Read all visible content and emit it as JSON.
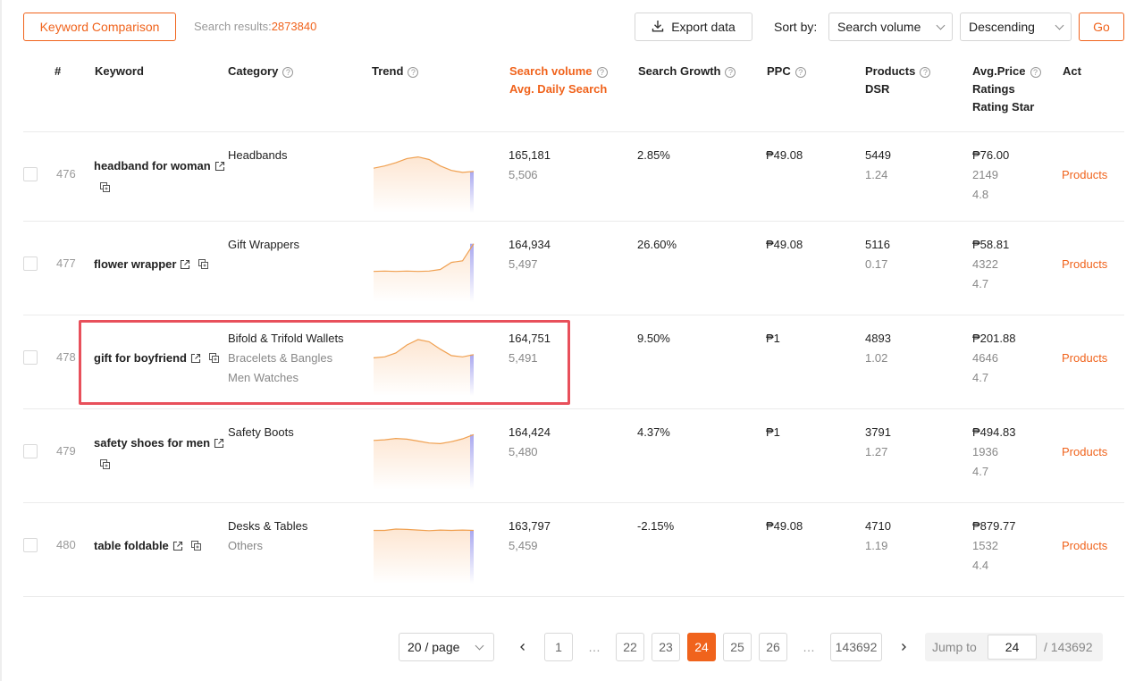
{
  "toolbar": {
    "keyword_comparison_label": "Keyword Comparison",
    "search_results_label": "Search results:",
    "search_results_count": "2873840",
    "export_label": "Export data",
    "sort_by_label": "Sort by:",
    "sort_field": "Search volume",
    "sort_order": "Descending",
    "go_label": "Go"
  },
  "headers": {
    "index": "#",
    "keyword": "Keyword",
    "category": "Category",
    "trend": "Trend",
    "search_volume": "Search volume",
    "avg_daily_search": "Avg. Daily Search",
    "search_growth": "Search Growth",
    "ppc": "PPC",
    "products": "Products",
    "dsr": "DSR",
    "avg_price": "Avg.Price",
    "ratings": "Ratings",
    "rating_star": "Rating Star",
    "act": "Act"
  },
  "rows": [
    {
      "index": "476",
      "keyword": "headband for woman",
      "categories": [
        "Headbands"
      ],
      "search_volume": "165,181",
      "avg_daily": "5,506",
      "growth": "2.85%",
      "ppc": "₱49.08",
      "products": "5449",
      "dsr": "1.24",
      "price": "₱76.00",
      "ratings": "2149",
      "star": "4.8",
      "action": "Products",
      "trend": [
        0.55,
        0.62,
        0.72,
        0.85,
        0.9,
        0.82,
        0.62,
        0.48,
        0.42,
        0.45
      ]
    },
    {
      "index": "477",
      "keyword": "flower wrapper",
      "categories": [
        "Gift Wrappers"
      ],
      "search_volume": "164,934",
      "avg_daily": "5,497",
      "growth": "26.60%",
      "ppc": "₱49.08",
      "products": "5116",
      "dsr": "0.17",
      "price": "₱58.81",
      "ratings": "4322",
      "star": "4.7",
      "action": "Products",
      "trend": [
        0.12,
        0.13,
        0.12,
        0.13,
        0.12,
        0.13,
        0.18,
        0.4,
        0.45,
        0.98
      ]
    },
    {
      "index": "478",
      "keyword": "gift for boyfriend",
      "categories": [
        "Bifold & Trifold Wallets",
        "Bracelets & Bangles",
        "Men Watches"
      ],
      "search_volume": "164,751",
      "avg_daily": "5,491",
      "growth": "9.50%",
      "ppc": "₱1",
      "products": "4893",
      "dsr": "1.02",
      "price": "₱201.88",
      "ratings": "4646",
      "star": "4.7",
      "action": "Products",
      "trend": [
        0.35,
        0.38,
        0.5,
        0.75,
        0.92,
        0.85,
        0.62,
        0.42,
        0.38,
        0.45
      ]
    },
    {
      "index": "479",
      "keyword": "safety shoes for men",
      "categories": [
        "Safety Boots"
      ],
      "search_volume": "164,424",
      "avg_daily": "5,480",
      "growth": "4.37%",
      "ppc": "₱1",
      "products": "3791",
      "dsr": "1.27",
      "price": "₱494.83",
      "ratings": "1936",
      "star": "4.7",
      "action": "Products",
      "trend": [
        0.7,
        0.72,
        0.76,
        0.74,
        0.68,
        0.62,
        0.6,
        0.66,
        0.75,
        0.88
      ]
    },
    {
      "index": "480",
      "keyword": "table foldable",
      "categories": [
        "Desks & Tables",
        "Others"
      ],
      "search_volume": "163,797",
      "avg_daily": "5,459",
      "growth": "-2.15%",
      "ppc": "₱49.08",
      "products": "4710",
      "dsr": "1.19",
      "price": "₱879.77",
      "ratings": "1532",
      "star": "4.4",
      "action": "Products",
      "trend": [
        0.82,
        0.82,
        0.86,
        0.85,
        0.83,
        0.81,
        0.83,
        0.82,
        0.83,
        0.82
      ]
    }
  ],
  "pagination": {
    "page_size": "20 / page",
    "pages": [
      "1",
      "…",
      "22",
      "23",
      "24",
      "25",
      "26",
      "…",
      "143692"
    ],
    "active": "24",
    "jump_label": "Jump to",
    "jump_value": "24",
    "total": "/ 143692"
  },
  "colors": {
    "accent": "#f0631c",
    "highlight": "#e8505b",
    "trend_line": "#f0a050",
    "trend_fill": "#fde6d2",
    "trend_end": "#a9a8f0"
  }
}
